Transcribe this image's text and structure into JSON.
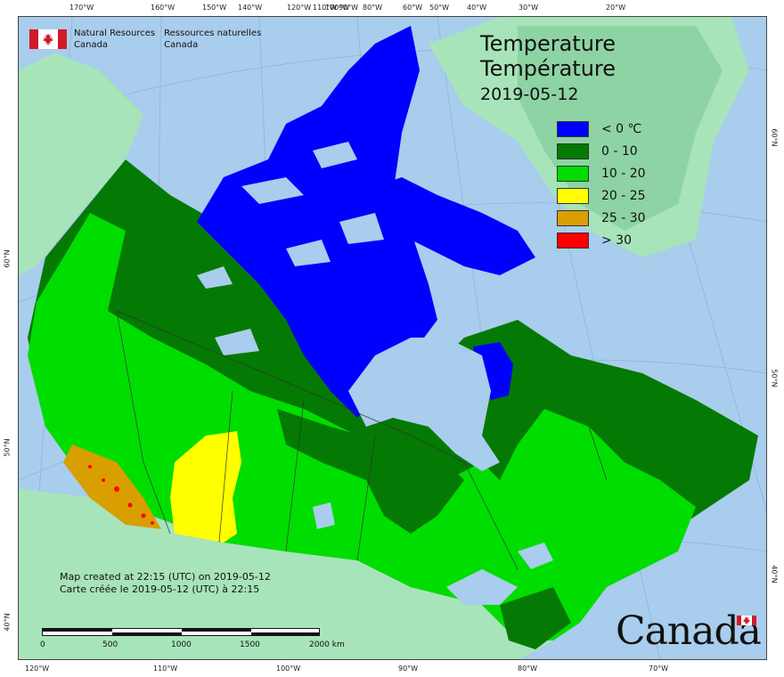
{
  "map": {
    "title_en": "Temperature",
    "title_fr": "Température",
    "date": "2019-05-12",
    "legend": [
      {
        "label": "< 0 ℃",
        "color": "#0000ff"
      },
      {
        "label": "0 - 10",
        "color": "#047a04"
      },
      {
        "label": "10 - 20",
        "color": "#00dd00"
      },
      {
        "label": "20 - 25",
        "color": "#ffff00"
      },
      {
        "label": "25 - 30",
        "color": "#d99e00"
      },
      {
        "label": "> 30",
        "color": "#ff0000"
      }
    ],
    "agency_en_line1": "Natural Resources",
    "agency_en_line2": "Canada",
    "agency_fr_line1": "Ressources naturelles",
    "agency_fr_line2": "Canada",
    "credit_en": "Map created at 22:15 (UTC) on 2019-05-12",
    "credit_fr": "Carte créée le 2019-05-12 (UTC) à 22:15",
    "scale_labels": [
      "0",
      "500",
      "1000",
      "1500",
      "2000 km"
    ],
    "wordmark": "Canada",
    "top_ticks": [
      "170°W",
      "160°W",
      "150°W",
      "140°W",
      "120°W",
      "110°W",
      "100°W",
      "90°W",
      "80°W",
      "60°W",
      "50°W",
      "40°W",
      "30°W",
      "20°W"
    ],
    "bottom_ticks": [
      "120°W",
      "110°W",
      "100°W",
      "90°W",
      "80°W",
      "70°W"
    ],
    "left_ticks": [
      "60°N",
      "50°N",
      "40°N"
    ],
    "right_ticks": [
      "60°N",
      "50°N",
      "40°N"
    ],
    "colors": {
      "ocean": "#a9cdec",
      "land": "#a7e4b9",
      "ice": "#a7e4b9",
      "lake": "#a9cdec"
    }
  }
}
